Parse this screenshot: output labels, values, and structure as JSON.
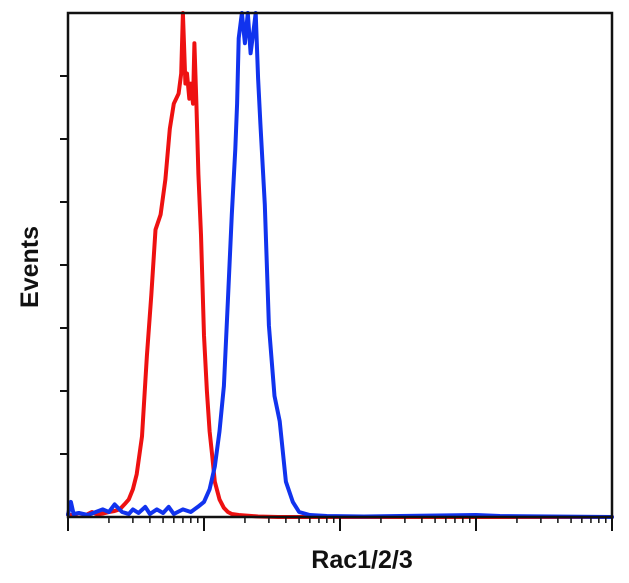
{
  "chart_data": {
    "type": "line",
    "title": "",
    "xlabel": "Rac1/2/3",
    "ylabel": "Events",
    "xscale": "log",
    "xlim": [
      1,
      10000
    ],
    "ylim": [
      0,
      100
    ],
    "grid": false,
    "legend": "none",
    "series": [
      {
        "color": "#ee1111",
        "x": [
          1,
          1.1,
          1.2,
          1.35,
          1.5,
          1.65,
          1.8,
          2.0,
          2.2,
          2.4,
          2.6,
          2.8,
          3.0,
          3.2,
          3.5,
          3.8,
          4.1,
          4.4,
          4.8,
          5.2,
          5.6,
          6.0,
          6.5,
          6.8,
          7.0,
          7.3,
          7.5,
          7.8,
          8.0,
          8.3,
          8.5,
          8.8,
          9.1,
          9.5,
          10.0,
          10.5,
          11.0,
          11.5,
          12.0,
          13.0,
          14.0,
          15.0,
          16.0,
          18.0,
          20.0,
          25.0,
          35.0,
          10000
        ],
        "y": [
          0.5,
          0.3,
          0.8,
          0.4,
          1.0,
          0.5,
          0.7,
          1.0,
          1.2,
          1.5,
          2.5,
          3.5,
          5.5,
          8.5,
          16.0,
          32.0,
          44.0,
          57.0,
          60.0,
          67.0,
          77.0,
          82.0,
          84.0,
          88.0,
          100.0,
          86.0,
          88.0,
          83.0,
          86.0,
          82.0,
          94.0,
          82.0,
          68.0,
          56.0,
          36.0,
          25.0,
          17.0,
          12.0,
          7.0,
          3.5,
          1.8,
          1.0,
          0.6,
          0.4,
          0.3,
          0.1,
          0.0,
          0.0
        ]
      },
      {
        "color": "#1133ee",
        "x": [
          1,
          1.05,
          1.1,
          1.2,
          1.4,
          1.6,
          1.8,
          2.0,
          2.2,
          2.5,
          2.8,
          3.0,
          3.3,
          3.7,
          4.0,
          4.5,
          5.0,
          5.5,
          6.0,
          7.0,
          8.0,
          9.0,
          10.0,
          11.0,
          12.0,
          13.0,
          14.0,
          15.0,
          16.0,
          17.0,
          17.5,
          18.0,
          19.0,
          20.0,
          21.0,
          22.0,
          23.0,
          24.0,
          25.0,
          26.0,
          28.0,
          30.0,
          33.0,
          36.0,
          40.0,
          45.0,
          50.0,
          60.0,
          80.0,
          150.0,
          1000.0,
          1500.0,
          10000
        ],
        "y": [
          0.5,
          3.0,
          0.6,
          0.8,
          0.4,
          1.0,
          1.5,
          1.0,
          2.5,
          1.0,
          0.6,
          1.5,
          0.8,
          2.0,
          0.6,
          1.5,
          0.8,
          2.0,
          0.6,
          1.5,
          1.0,
          2.0,
          3.0,
          5.5,
          10.0,
          17.0,
          26.0,
          43.0,
          60.0,
          73.0,
          82.0,
          95.0,
          100.0,
          94.0,
          100.0,
          92.0,
          96.0,
          100.0,
          87.0,
          78.0,
          62.0,
          38.0,
          24.0,
          19.0,
          7.0,
          3.0,
          1.0,
          0.4,
          0.2,
          0.1,
          0.4,
          0.2,
          0.0
        ]
      }
    ]
  }
}
